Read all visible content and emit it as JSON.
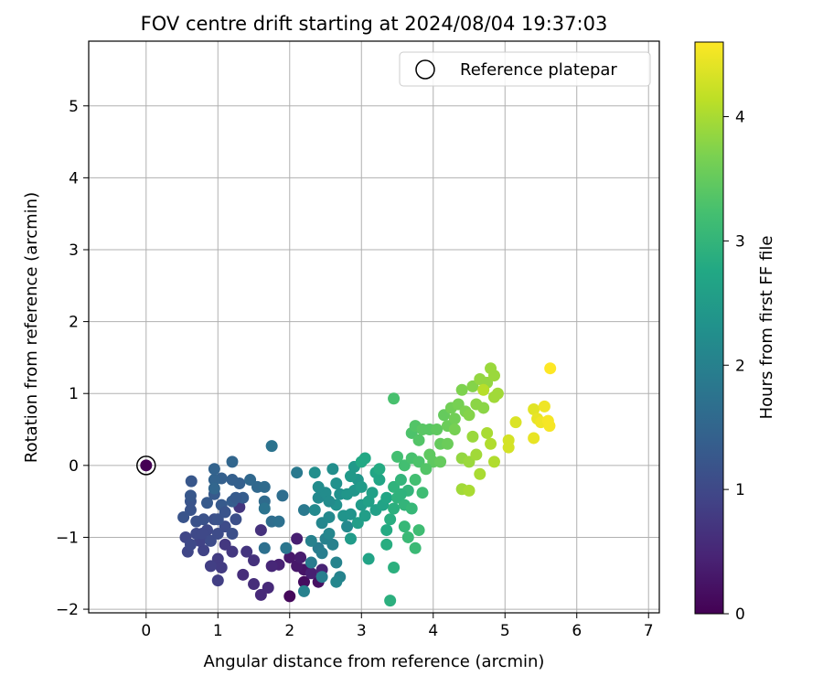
{
  "chart_data": {
    "type": "scatter",
    "title": "FOV centre drift starting at 2024/08/04 19:37:03",
    "xlabel": "Angular distance from reference (arcmin)",
    "ylabel": "Rotation from reference (arcmin)",
    "xlim": [
      -0.8,
      7.15
    ],
    "ylim": [
      -2.05,
      5.9
    ],
    "xticks": [
      0,
      1,
      2,
      3,
      4,
      5,
      6,
      7
    ],
    "yticks": [
      -2,
      -1,
      0,
      1,
      2,
      3,
      4,
      5
    ],
    "grid": true,
    "legend": {
      "location": "top-right",
      "entries": [
        "Reference platepar"
      ]
    },
    "reference_point": {
      "x": 0,
      "y": 0,
      "label": "Reference platepar"
    },
    "colorbar": {
      "label": "Hours from first FF file",
      "colormap": "viridis",
      "range": [
        0,
        4.6
      ],
      "ticks": [
        0,
        1,
        2,
        3,
        4
      ]
    },
    "color_by": "hours",
    "points": [
      {
        "x": 0.0,
        "y": 0.0,
        "hours": 0.0
      },
      {
        "x": 2.0,
        "y": -1.82,
        "hours": 0.1
      },
      {
        "x": 2.2,
        "y": -1.62,
        "hours": 0.15
      },
      {
        "x": 2.4,
        "y": -1.62,
        "hours": 0.2
      },
      {
        "x": 2.2,
        "y": -1.45,
        "hours": 0.25
      },
      {
        "x": 2.1,
        "y": -1.4,
        "hours": 0.3
      },
      {
        "x": 2.0,
        "y": -1.28,
        "hours": 0.3
      },
      {
        "x": 2.15,
        "y": -1.28,
        "hours": 0.35
      },
      {
        "x": 2.3,
        "y": -1.5,
        "hours": 0.4
      },
      {
        "x": 2.45,
        "y": -1.45,
        "hours": 0.45
      },
      {
        "x": 2.1,
        "y": -1.02,
        "hours": 0.4
      },
      {
        "x": 1.85,
        "y": -1.38,
        "hours": 0.45
      },
      {
        "x": 1.75,
        "y": -1.4,
        "hours": 0.5
      },
      {
        "x": 1.6,
        "y": -1.8,
        "hours": 0.55
      },
      {
        "x": 1.7,
        "y": -1.7,
        "hours": 0.55
      },
      {
        "x": 1.5,
        "y": -1.65,
        "hours": 0.6
      },
      {
        "x": 1.35,
        "y": -1.52,
        "hours": 0.6
      },
      {
        "x": 1.5,
        "y": -1.32,
        "hours": 0.65
      },
      {
        "x": 1.6,
        "y": -0.9,
        "hours": 0.65
      },
      {
        "x": 1.3,
        "y": -0.58,
        "hours": 0.7
      },
      {
        "x": 1.4,
        "y": -1.2,
        "hours": 0.7
      },
      {
        "x": 1.2,
        "y": -1.2,
        "hours": 0.75
      },
      {
        "x": 1.1,
        "y": -1.1,
        "hours": 0.75
      },
      {
        "x": 1.0,
        "y": -1.3,
        "hours": 0.8
      },
      {
        "x": 1.05,
        "y": -1.42,
        "hours": 0.8
      },
      {
        "x": 0.9,
        "y": -1.4,
        "hours": 0.85
      },
      {
        "x": 1.0,
        "y": -1.6,
        "hours": 0.85
      },
      {
        "x": 0.8,
        "y": -1.18,
        "hours": 0.9
      },
      {
        "x": 0.75,
        "y": -1.05,
        "hours": 0.9
      },
      {
        "x": 0.55,
        "y": -1.0,
        "hours": 0.95
      },
      {
        "x": 0.58,
        "y": -1.2,
        "hours": 0.95
      },
      {
        "x": 0.62,
        "y": -1.1,
        "hours": 1.0
      },
      {
        "x": 0.7,
        "y": -0.95,
        "hours": 1.0
      },
      {
        "x": 0.85,
        "y": -0.9,
        "hours": 1.0
      },
      {
        "x": 0.9,
        "y": -1.05,
        "hours": 1.05
      },
      {
        "x": 1.0,
        "y": -0.95,
        "hours": 1.05
      },
      {
        "x": 1.1,
        "y": -0.85,
        "hours": 1.05
      },
      {
        "x": 1.2,
        "y": -0.95,
        "hours": 1.1
      },
      {
        "x": 1.25,
        "y": -0.75,
        "hours": 1.1
      },
      {
        "x": 0.95,
        "y": -0.75,
        "hours": 1.1
      },
      {
        "x": 0.8,
        "y": -0.75,
        "hours": 1.15
      },
      {
        "x": 0.7,
        "y": -0.78,
        "hours": 1.15
      },
      {
        "x": 0.52,
        "y": -0.72,
        "hours": 1.2
      },
      {
        "x": 0.62,
        "y": -0.62,
        "hours": 1.2
      },
      {
        "x": 0.62,
        "y": -0.5,
        "hours": 1.2
      },
      {
        "x": 0.62,
        "y": -0.42,
        "hours": 1.25
      },
      {
        "x": 0.63,
        "y": -0.22,
        "hours": 1.25
      },
      {
        "x": 0.85,
        "y": -0.52,
        "hours": 1.3
      },
      {
        "x": 0.95,
        "y": -0.4,
        "hours": 1.3
      },
      {
        "x": 1.05,
        "y": -0.55,
        "hours": 1.3
      },
      {
        "x": 1.2,
        "y": -0.5,
        "hours": 1.35
      },
      {
        "x": 1.35,
        "y": -0.45,
        "hours": 1.35
      },
      {
        "x": 1.3,
        "y": -0.25,
        "hours": 1.4
      },
      {
        "x": 1.2,
        "y": -0.2,
        "hours": 1.4
      },
      {
        "x": 1.05,
        "y": -0.18,
        "hours": 1.4
      },
      {
        "x": 0.95,
        "y": -0.2,
        "hours": 1.45
      },
      {
        "x": 0.95,
        "y": -0.05,
        "hours": 1.45
      },
      {
        "x": 0.95,
        "y": -0.32,
        "hours": 1.5
      },
      {
        "x": 1.2,
        "y": 0.05,
        "hours": 1.5
      },
      {
        "x": 1.45,
        "y": -0.2,
        "hours": 1.55
      },
      {
        "x": 1.55,
        "y": -0.3,
        "hours": 1.55
      },
      {
        "x": 1.65,
        "y": -0.3,
        "hours": 1.6
      },
      {
        "x": 1.65,
        "y": -0.5,
        "hours": 1.6
      },
      {
        "x": 1.75,
        "y": -0.78,
        "hours": 1.65
      },
      {
        "x": 1.9,
        "y": -0.42,
        "hours": 1.65
      },
      {
        "x": 1.85,
        "y": -0.78,
        "hours": 1.7
      },
      {
        "x": 1.65,
        "y": -1.15,
        "hours": 1.7
      },
      {
        "x": 1.75,
        "y": 0.27,
        "hours": 1.75
      },
      {
        "x": 1.65,
        "y": -0.6,
        "hours": 1.75
      },
      {
        "x": 1.25,
        "y": -0.45,
        "hours": 1.3
      },
      {
        "x": 1.0,
        "y": -0.75,
        "hours": 1.15
      },
      {
        "x": 1.1,
        "y": -0.65,
        "hours": 1.2
      },
      {
        "x": 0.78,
        "y": -0.95,
        "hours": 1.0
      },
      {
        "x": 1.95,
        "y": -1.15,
        "hours": 1.8
      },
      {
        "x": 2.1,
        "y": -0.1,
        "hours": 1.85
      },
      {
        "x": 2.2,
        "y": -0.62,
        "hours": 1.85
      },
      {
        "x": 2.3,
        "y": -1.35,
        "hours": 1.9
      },
      {
        "x": 2.4,
        "y": -1.15,
        "hours": 1.9
      },
      {
        "x": 2.45,
        "y": -1.22,
        "hours": 1.95
      },
      {
        "x": 2.45,
        "y": -1.55,
        "hours": 1.95
      },
      {
        "x": 2.2,
        "y": -1.75,
        "hours": 2.0
      },
      {
        "x": 2.5,
        "y": -1.02,
        "hours": 2.0
      },
      {
        "x": 2.6,
        "y": -1.1,
        "hours": 2.0
      },
      {
        "x": 2.65,
        "y": -1.35,
        "hours": 2.05
      },
      {
        "x": 2.7,
        "y": -1.55,
        "hours": 2.05
      },
      {
        "x": 2.65,
        "y": -1.62,
        "hours": 2.1
      },
      {
        "x": 2.55,
        "y": -0.95,
        "hours": 2.1
      },
      {
        "x": 2.45,
        "y": -0.8,
        "hours": 2.1
      },
      {
        "x": 2.55,
        "y": -0.72,
        "hours": 2.15
      },
      {
        "x": 2.35,
        "y": -0.62,
        "hours": 2.15
      },
      {
        "x": 2.4,
        "y": -0.45,
        "hours": 2.15
      },
      {
        "x": 2.5,
        "y": -0.38,
        "hours": 2.2
      },
      {
        "x": 2.4,
        "y": -0.3,
        "hours": 2.2
      },
      {
        "x": 2.35,
        "y": -0.1,
        "hours": 2.25
      },
      {
        "x": 2.6,
        "y": -0.05,
        "hours": 2.25
      },
      {
        "x": 2.65,
        "y": -0.25,
        "hours": 2.3
      },
      {
        "x": 2.7,
        "y": -0.4,
        "hours": 2.3
      },
      {
        "x": 2.65,
        "y": -0.55,
        "hours": 2.3
      },
      {
        "x": 2.75,
        "y": -0.7,
        "hours": 2.35
      },
      {
        "x": 2.85,
        "y": -0.68,
        "hours": 2.35
      },
      {
        "x": 2.8,
        "y": -0.4,
        "hours": 2.4
      },
      {
        "x": 2.9,
        "y": -0.35,
        "hours": 2.4
      },
      {
        "x": 2.95,
        "y": -0.2,
        "hours": 2.4
      },
      {
        "x": 2.85,
        "y": -0.15,
        "hours": 2.45
      },
      {
        "x": 2.9,
        "y": -0.02,
        "hours": 2.45
      },
      {
        "x": 2.85,
        "y": -1.02,
        "hours": 2.5
      },
      {
        "x": 2.8,
        "y": -0.85,
        "hours": 2.15
      },
      {
        "x": 2.3,
        "y": -1.05,
        "hours": 2.0
      },
      {
        "x": 2.55,
        "y": -0.5,
        "hours": 2.2
      },
      {
        "x": 3.0,
        "y": -0.3,
        "hours": 2.5
      },
      {
        "x": 3.0,
        "y": -0.55,
        "hours": 2.5
      },
      {
        "x": 3.05,
        "y": -0.7,
        "hours": 2.55
      },
      {
        "x": 2.95,
        "y": -0.8,
        "hours": 2.55
      },
      {
        "x": 3.1,
        "y": -0.5,
        "hours": 2.6
      },
      {
        "x": 3.2,
        "y": -0.62,
        "hours": 2.6
      },
      {
        "x": 3.15,
        "y": -0.38,
        "hours": 2.6
      },
      {
        "x": 3.1,
        "y": -1.3,
        "hours": 2.65
      },
      {
        "x": 3.3,
        "y": -0.55,
        "hours": 2.65
      },
      {
        "x": 3.35,
        "y": -0.45,
        "hours": 2.7
      },
      {
        "x": 3.25,
        "y": -0.2,
        "hours": 2.7
      },
      {
        "x": 3.2,
        "y": -0.1,
        "hours": 2.7
      },
      {
        "x": 3.0,
        "y": 0.05,
        "hours": 2.75
      },
      {
        "x": 3.05,
        "y": 0.1,
        "hours": 2.75
      },
      {
        "x": 3.25,
        "y": -0.05,
        "hours": 2.8
      },
      {
        "x": 3.35,
        "y": -0.9,
        "hours": 2.8
      },
      {
        "x": 3.35,
        "y": -1.1,
        "hours": 2.85
      },
      {
        "x": 3.4,
        "y": -0.75,
        "hours": 2.85
      },
      {
        "x": 3.45,
        "y": -0.6,
        "hours": 2.9
      },
      {
        "x": 3.45,
        "y": -1.42,
        "hours": 2.9
      },
      {
        "x": 3.4,
        "y": -1.88,
        "hours": 2.9
      },
      {
        "x": 3.45,
        "y": -0.3,
        "hours": 2.95
      },
      {
        "x": 3.5,
        "y": -0.45,
        "hours": 2.95
      },
      {
        "x": 3.55,
        "y": -0.2,
        "hours": 3.0
      },
      {
        "x": 3.6,
        "y": -0.55,
        "hours": 3.0
      },
      {
        "x": 3.65,
        "y": -0.35,
        "hours": 3.0
      },
      {
        "x": 3.7,
        "y": -0.6,
        "hours": 3.05
      },
      {
        "x": 3.6,
        "y": -0.85,
        "hours": 3.05
      },
      {
        "x": 3.65,
        "y": -1.0,
        "hours": 3.1
      },
      {
        "x": 3.75,
        "y": -1.15,
        "hours": 3.1
      },
      {
        "x": 3.8,
        "y": -0.9,
        "hours": 3.15
      },
      {
        "x": 3.85,
        "y": -0.38,
        "hours": 3.15
      },
      {
        "x": 3.75,
        "y": -0.2,
        "hours": 3.2
      },
      {
        "x": 3.6,
        "y": 0.0,
        "hours": 3.2
      },
      {
        "x": 3.5,
        "y": 0.12,
        "hours": 3.2
      },
      {
        "x": 3.45,
        "y": 0.93,
        "hours": 3.25
      },
      {
        "x": 3.7,
        "y": 0.1,
        "hours": 3.25
      },
      {
        "x": 3.8,
        "y": 0.05,
        "hours": 3.3
      },
      {
        "x": 3.7,
        "y": 0.45,
        "hours": 3.3
      },
      {
        "x": 3.75,
        "y": 0.55,
        "hours": 3.35
      },
      {
        "x": 3.8,
        "y": 0.35,
        "hours": 3.35
      },
      {
        "x": 3.85,
        "y": 0.5,
        "hours": 3.4
      },
      {
        "x": 3.95,
        "y": 0.5,
        "hours": 3.4
      },
      {
        "x": 3.95,
        "y": 0.15,
        "hours": 3.45
      },
      {
        "x": 4.0,
        "y": 0.05,
        "hours": 3.45
      },
      {
        "x": 4.05,
        "y": 0.5,
        "hours": 3.45
      },
      {
        "x": 4.1,
        "y": 0.3,
        "hours": 3.5
      },
      {
        "x": 4.15,
        "y": 0.7,
        "hours": 3.5
      },
      {
        "x": 4.1,
        "y": 0.05,
        "hours": 3.5
      },
      {
        "x": 3.9,
        "y": -0.05,
        "hours": 3.35
      },
      {
        "x": 3.55,
        "y": -0.4,
        "hours": 2.95
      },
      {
        "x": 4.2,
        "y": 0.3,
        "hours": 3.55
      },
      {
        "x": 4.2,
        "y": 0.55,
        "hours": 3.55
      },
      {
        "x": 4.3,
        "y": 0.65,
        "hours": 3.6
      },
      {
        "x": 4.25,
        "y": 0.8,
        "hours": 3.6
      },
      {
        "x": 4.3,
        "y": 0.5,
        "hours": 3.65
      },
      {
        "x": 4.35,
        "y": 0.85,
        "hours": 3.65
      },
      {
        "x": 4.4,
        "y": 1.05,
        "hours": 3.7
      },
      {
        "x": 4.45,
        "y": 0.75,
        "hours": 3.7
      },
      {
        "x": 4.5,
        "y": 0.7,
        "hours": 3.75
      },
      {
        "x": 4.55,
        "y": 1.1,
        "hours": 3.75
      },
      {
        "x": 4.6,
        "y": 0.85,
        "hours": 3.8
      },
      {
        "x": 4.7,
        "y": 0.8,
        "hours": 3.8
      },
      {
        "x": 4.65,
        "y": 1.2,
        "hours": 3.85
      },
      {
        "x": 4.75,
        "y": 1.15,
        "hours": 3.85
      },
      {
        "x": 4.8,
        "y": 1.35,
        "hours": 3.9
      },
      {
        "x": 4.85,
        "y": 1.25,
        "hours": 3.9
      },
      {
        "x": 4.9,
        "y": 1.0,
        "hours": 3.95
      },
      {
        "x": 4.85,
        "y": 0.95,
        "hours": 3.95
      },
      {
        "x": 4.4,
        "y": 0.1,
        "hours": 3.85
      },
      {
        "x": 4.5,
        "y": 0.05,
        "hours": 3.9
      },
      {
        "x": 4.55,
        "y": 0.4,
        "hours": 3.9
      },
      {
        "x": 4.6,
        "y": 0.15,
        "hours": 3.95
      },
      {
        "x": 4.65,
        "y": -0.12,
        "hours": 4.0
      },
      {
        "x": 4.75,
        "y": 0.45,
        "hours": 4.0
      },
      {
        "x": 4.8,
        "y": 0.3,
        "hours": 4.05
      },
      {
        "x": 4.85,
        "y": 0.05,
        "hours": 4.05
      },
      {
        "x": 4.4,
        "y": -0.33,
        "hours": 3.95
      },
      {
        "x": 4.5,
        "y": -0.35,
        "hours": 4.0
      },
      {
        "x": 4.7,
        "y": 1.05,
        "hours": 4.1
      },
      {
        "x": 5.05,
        "y": 0.35,
        "hours": 4.3
      },
      {
        "x": 5.05,
        "y": 0.25,
        "hours": 4.3
      },
      {
        "x": 5.15,
        "y": 0.6,
        "hours": 4.35
      },
      {
        "x": 5.4,
        "y": 0.78,
        "hours": 4.4
      },
      {
        "x": 5.45,
        "y": 0.65,
        "hours": 4.45
      },
      {
        "x": 5.4,
        "y": 0.38,
        "hours": 4.45
      },
      {
        "x": 5.5,
        "y": 0.6,
        "hours": 4.5
      },
      {
        "x": 5.55,
        "y": 0.82,
        "hours": 4.5
      },
      {
        "x": 5.6,
        "y": 0.62,
        "hours": 4.55
      },
      {
        "x": 5.62,
        "y": 0.55,
        "hours": 4.55
      },
      {
        "x": 5.63,
        "y": 1.35,
        "hours": 4.6
      }
    ]
  }
}
